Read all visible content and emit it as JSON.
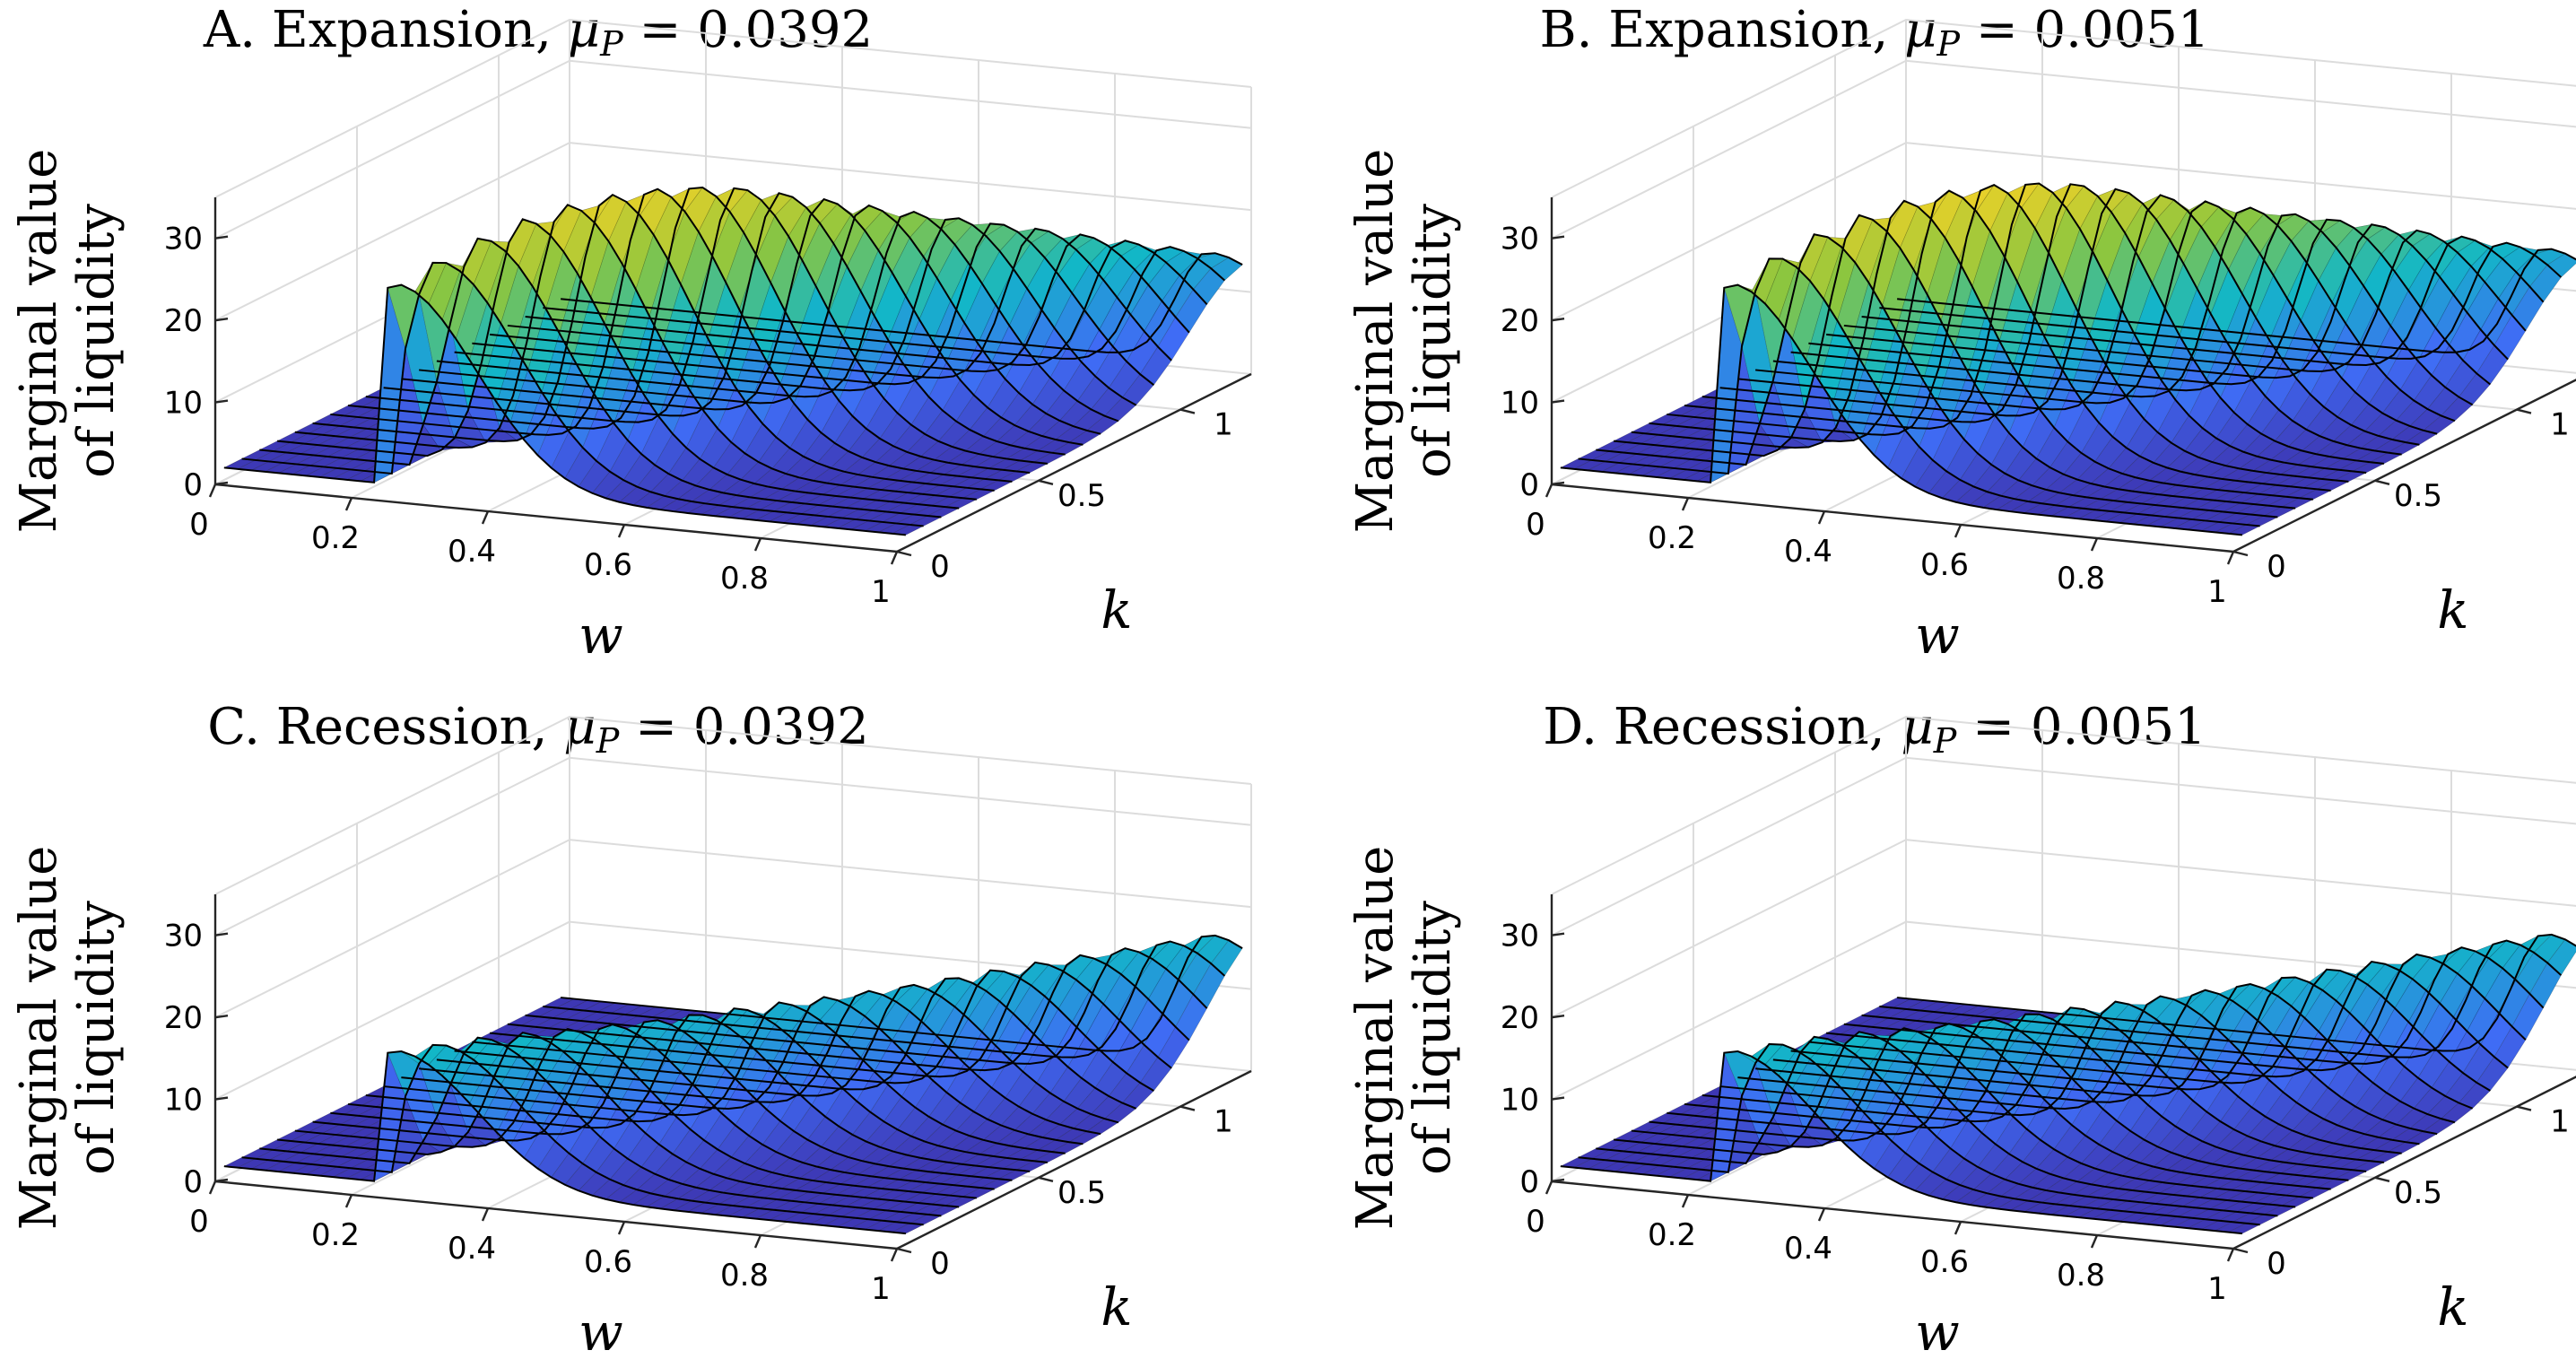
{
  "chart_data": [
    {
      "type": "surface",
      "panel": "A",
      "title": "A. Expansion, ",
      "mu_symbol": "μ",
      "mu_sub": "P",
      "mu_value": " = 0.0392",
      "zlabel_line1": "Marginal value",
      "zlabel_line2": "of liquidity",
      "xlabel": "w",
      "ylabel": "k",
      "x_ticks": [
        "0",
        "0.2",
        "0.4",
        "0.6",
        "0.8",
        "1"
      ],
      "y_ticks": [
        "0",
        "0.5",
        "1"
      ],
      "z_ticks": [
        "0",
        "10",
        "20",
        "30"
      ],
      "xlim": [
        0,
        1
      ],
      "ylim": [
        0,
        1.25
      ],
      "zlim": [
        0,
        35
      ],
      "ridge_peak_values": [
        26,
        28,
        30,
        31.5,
        32.5,
        33,
        33,
        32.5,
        31.5,
        30,
        28.5,
        27,
        25.5,
        24,
        22.5,
        21,
        19.5,
        18,
        16.5,
        15
      ],
      "baseline_value": 1.5,
      "ridge_start_w": 0.25,
      "ridge_end_w": 0.95
    },
    {
      "type": "surface",
      "panel": "B",
      "title": "B. Expansion, ",
      "mu_symbol": "μ",
      "mu_sub": "P",
      "mu_value": " = 0.0051",
      "zlabel_line1": "Marginal value",
      "zlabel_line2": "of liquidity",
      "xlabel": "w",
      "ylabel": "k",
      "x_ticks": [
        "0",
        "0.2",
        "0.4",
        "0.6",
        "0.8",
        "1"
      ],
      "y_ticks": [
        "0",
        "0.5",
        "1"
      ],
      "z_ticks": [
        "0",
        "10",
        "20",
        "30"
      ],
      "xlim": [
        0,
        1
      ],
      "ylim": [
        0,
        1.25
      ],
      "zlim": [
        0,
        35
      ],
      "ridge_peak_values": [
        26,
        28.5,
        30.5,
        32,
        33,
        33.5,
        33.5,
        33,
        32,
        30.5,
        29,
        27.5,
        26,
        24.5,
        23,
        21.5,
        20,
        18.5,
        17,
        15.5
      ],
      "baseline_value": 1.5,
      "ridge_start_w": 0.25,
      "ridge_end_w": 0.95
    },
    {
      "type": "surface",
      "panel": "C",
      "title": "C. Recession, ",
      "mu_symbol": "μ",
      "mu_sub": "P",
      "mu_value": " = 0.0392",
      "zlabel_line1": "Marginal value",
      "zlabel_line2": "of liquidity",
      "xlabel": "w",
      "ylabel": "k",
      "x_ticks": [
        "0",
        "0.2",
        "0.4",
        "0.6",
        "0.8",
        "1"
      ],
      "y_ticks": [
        "0",
        "0.5",
        "1"
      ],
      "z_ticks": [
        "0",
        "10",
        "20",
        "30"
      ],
      "xlim": [
        0,
        1
      ],
      "ylim": [
        0,
        1.25
      ],
      "zlim": [
        0,
        35
      ],
      "ridge_peak_values": [
        17.5,
        17.5,
        17.5,
        17.3,
        17,
        16.8,
        16.6,
        16.5,
        16.4,
        16.3,
        16.2,
        16.2,
        16.2,
        16.3,
        16.4,
        16.5,
        16.6,
        16.7,
        16.8,
        16.8
      ],
      "baseline_value": 1.3,
      "ridge_start_w": 0.25,
      "ridge_end_w": 0.95
    },
    {
      "type": "surface",
      "panel": "D",
      "title": "D. Recession, ",
      "mu_symbol": "μ",
      "mu_sub": "P",
      "mu_value": " = 0.0051",
      "zlabel_line1": "Marginal value",
      "zlabel_line2": "of liquidity",
      "xlabel": "w",
      "ylabel": "k",
      "x_ticks": [
        "0",
        "0.2",
        "0.4",
        "0.6",
        "0.8",
        "1"
      ],
      "y_ticks": [
        "0",
        "0.5",
        "1"
      ],
      "z_ticks": [
        "0",
        "10",
        "20",
        "30"
      ],
      "xlim": [
        0,
        1
      ],
      "ylim": [
        0,
        1.25
      ],
      "zlim": [
        0,
        35
      ],
      "ridge_peak_values": [
        17.5,
        17.6,
        17.6,
        17.4,
        17.1,
        16.9,
        16.7,
        16.6,
        16.5,
        16.4,
        16.3,
        16.3,
        16.3,
        16.4,
        16.5,
        16.6,
        16.7,
        16.8,
        16.9,
        16.9
      ],
      "baseline_value": 1.3,
      "ridge_start_w": 0.25,
      "ridge_end_w": 0.95
    }
  ]
}
